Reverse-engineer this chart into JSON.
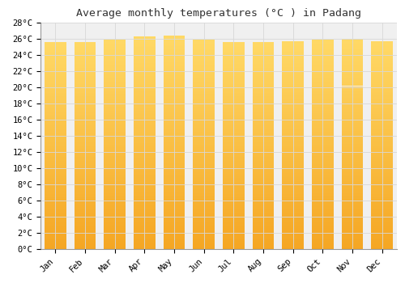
{
  "title": "Average monthly temperatures (°C ) in Padang",
  "months": [
    "Jan",
    "Feb",
    "Mar",
    "Apr",
    "May",
    "Jun",
    "Jul",
    "Aug",
    "Sep",
    "Oct",
    "Nov",
    "Dec"
  ],
  "temperatures": [
    25.6,
    25.6,
    25.9,
    26.3,
    26.4,
    25.9,
    25.6,
    25.6,
    25.7,
    25.9,
    26.0,
    25.7
  ],
  "ylim": [
    0,
    28
  ],
  "yticks": [
    0,
    2,
    4,
    6,
    8,
    10,
    12,
    14,
    16,
    18,
    20,
    22,
    24,
    26,
    28
  ],
  "bar_color_bottom": "#F5A623",
  "bar_color_top": "#FFD966",
  "background_color": "#ffffff",
  "plot_bg_color": "#f0f0f0",
  "grid_color": "#d8d8d8",
  "title_fontsize": 9.5,
  "tick_fontsize": 7.5,
  "title_font": "monospace",
  "tick_font": "monospace"
}
